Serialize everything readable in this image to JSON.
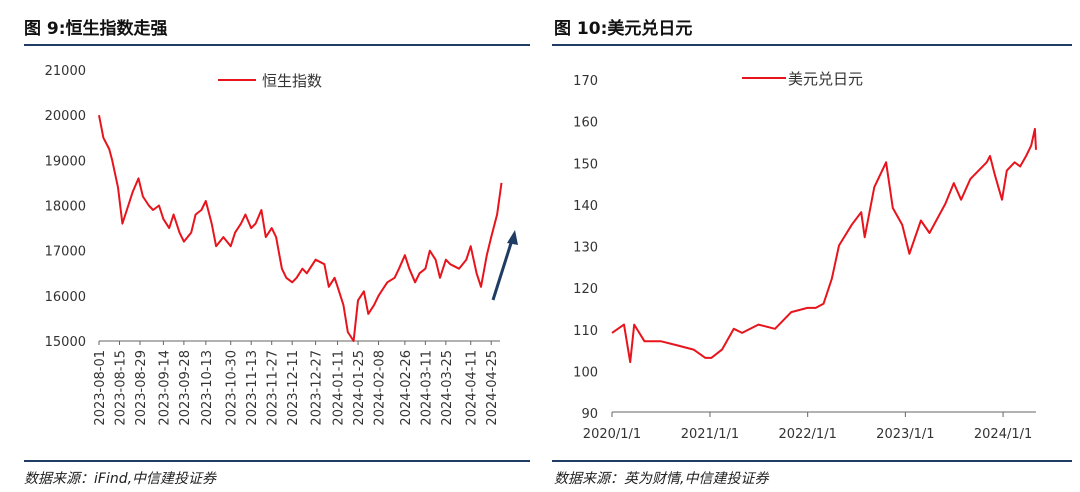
{
  "left": {
    "title": "图 9:恒生指数走强",
    "source": "数据来源：iFind,中信建投证券",
    "chart_data": {
      "type": "line",
      "title": "图 9:恒生指数走强",
      "legend": [
        "恒生指数"
      ],
      "legend_position": "top-center",
      "ylim": [
        15000,
        21000
      ],
      "yticks": [
        "15000",
        "16000",
        "17000",
        "18000",
        "19000",
        "20000",
        "21000"
      ],
      "xticks": [
        "2023-08-01",
        "2023-08-15",
        "2023-08-29",
        "2023-09-14",
        "2023-09-28",
        "2023-10-13",
        "2023-10-30",
        "2023-11-13",
        "2023-11-27",
        "2023-12-11",
        "2023-12-27",
        "2024-01-11",
        "2024-01-25",
        "2024-02-08",
        "2024-02-26",
        "2024-03-11",
        "2024-03-25",
        "2024-04-11",
        "2024-04-25"
      ],
      "grid": false,
      "annotation": "upward arrow (dark blue)",
      "color": "#e8141c",
      "arrow_color": "#1f3d62",
      "series": [
        {
          "name": "恒生指数",
          "x": [
            "2023-08-01",
            "2023-08-04",
            "2023-08-08",
            "2023-08-10",
            "2023-08-14",
            "2023-08-17",
            "2023-08-21",
            "2023-08-24",
            "2023-08-28",
            "2023-08-31",
            "2023-09-04",
            "2023-09-07",
            "2023-09-11",
            "2023-09-14",
            "2023-09-18",
            "2023-09-21",
            "2023-09-25",
            "2023-09-28",
            "2023-10-03",
            "2023-10-06",
            "2023-10-10",
            "2023-10-13",
            "2023-10-17",
            "2023-10-20",
            "2023-10-25",
            "2023-10-30",
            "2023-11-02",
            "2023-11-06",
            "2023-11-09",
            "2023-11-13",
            "2023-11-16",
            "2023-11-20",
            "2023-11-23",
            "2023-11-27",
            "2023-11-30",
            "2023-12-04",
            "2023-12-07",
            "2023-12-11",
            "2023-12-14",
            "2023-12-18",
            "2023-12-21",
            "2023-12-27",
            "2024-01-02",
            "2024-01-05",
            "2024-01-09",
            "2024-01-11",
            "2024-01-15",
            "2024-01-18",
            "2024-01-22",
            "2024-01-25",
            "2024-01-29",
            "2024-02-01",
            "2024-02-05",
            "2024-02-08",
            "2024-02-14",
            "2024-02-19",
            "2024-02-22",
            "2024-02-26",
            "2024-02-29",
            "2024-03-04",
            "2024-03-07",
            "2024-03-11",
            "2024-03-14",
            "2024-03-18",
            "2024-03-21",
            "2024-03-25",
            "2024-03-28",
            "2024-04-03",
            "2024-04-08",
            "2024-04-11",
            "2024-04-15",
            "2024-04-18",
            "2024-04-22",
            "2024-04-25",
            "2024-04-29",
            "2024-05-02"
          ],
          "values": [
            20000,
            19500,
            19250,
            19000,
            18400,
            17600,
            18000,
            18300,
            18600,
            18200,
            18000,
            17900,
            18000,
            17700,
            17500,
            17800,
            17400,
            17200,
            17400,
            17800,
            17900,
            18100,
            17600,
            17100,
            17300,
            17100,
            17400,
            17600,
            17800,
            17500,
            17600,
            17900,
            17300,
            17500,
            17300,
            16600,
            16400,
            16300,
            16400,
            16600,
            16500,
            16800,
            16700,
            16200,
            16400,
            16200,
            15800,
            15200,
            15000,
            15900,
            16100,
            15600,
            15800,
            16000,
            16300,
            16400,
            16600,
            16900,
            16600,
            16300,
            16500,
            16600,
            17000,
            16800,
            16400,
            16800,
            16700,
            16600,
            16800,
            17100,
            16500,
            16200,
            16900,
            17300,
            17800,
            18500
          ]
        }
      ]
    }
  },
  "right": {
    "title": "图 10:美元兑日元",
    "source": "数据来源：英为财情,中信建投证券",
    "chart_data": {
      "type": "line",
      "title": "图 10:美元兑日元",
      "legend": [
        "美元兑日元"
      ],
      "legend_position": "top-center",
      "ylim": [
        90,
        170
      ],
      "yticks": [
        "90",
        "100",
        "110",
        "120",
        "130",
        "140",
        "150",
        "160",
        "170"
      ],
      "xticks": [
        "2020/1/1",
        "2021/1/1",
        "2022/1/1",
        "2023/1/1",
        "2024/1/1"
      ],
      "grid": false,
      "color": "#e8141c",
      "series": [
        {
          "name": "美元兑日元",
          "x": [
            "2020-01-01",
            "2020-02-15",
            "2020-03-09",
            "2020-03-24",
            "2020-05-01",
            "2020-07-01",
            "2020-09-01",
            "2020-11-01",
            "2020-12-15",
            "2021-01-06",
            "2021-02-15",
            "2021-03-31",
            "2021-05-01",
            "2021-07-01",
            "2021-09-01",
            "2021-11-01",
            "2021-12-31",
            "2022-01-31",
            "2022-03-01",
            "2022-04-01",
            "2022-04-28",
            "2022-06-15",
            "2022-07-20",
            "2022-08-02",
            "2022-09-07",
            "2022-10-21",
            "2022-11-15",
            "2022-12-20",
            "2023-01-16",
            "2023-02-28",
            "2023-04-01",
            "2023-05-30",
            "2023-07-01",
            "2023-07-28",
            "2023-09-01",
            "2023-11-01",
            "2023-11-13",
            "2023-12-01",
            "2023-12-28",
            "2024-01-15",
            "2024-02-13",
            "2024-03-05",
            "2024-03-27",
            "2024-04-15",
            "2024-04-29",
            "2024-05-03"
          ],
          "values": [
            109,
            111,
            102,
            111,
            107,
            107,
            106,
            105,
            103,
            103,
            105,
            110,
            109,
            111,
            110,
            114,
            115,
            115,
            116,
            122,
            130,
            135,
            138,
            132,
            144,
            150,
            139,
            135,
            128,
            136,
            133,
            140,
            145,
            141,
            146,
            150,
            151.5,
            147,
            141,
            148,
            150,
            149,
            151.5,
            154,
            158,
            153
          ]
        }
      ]
    }
  }
}
